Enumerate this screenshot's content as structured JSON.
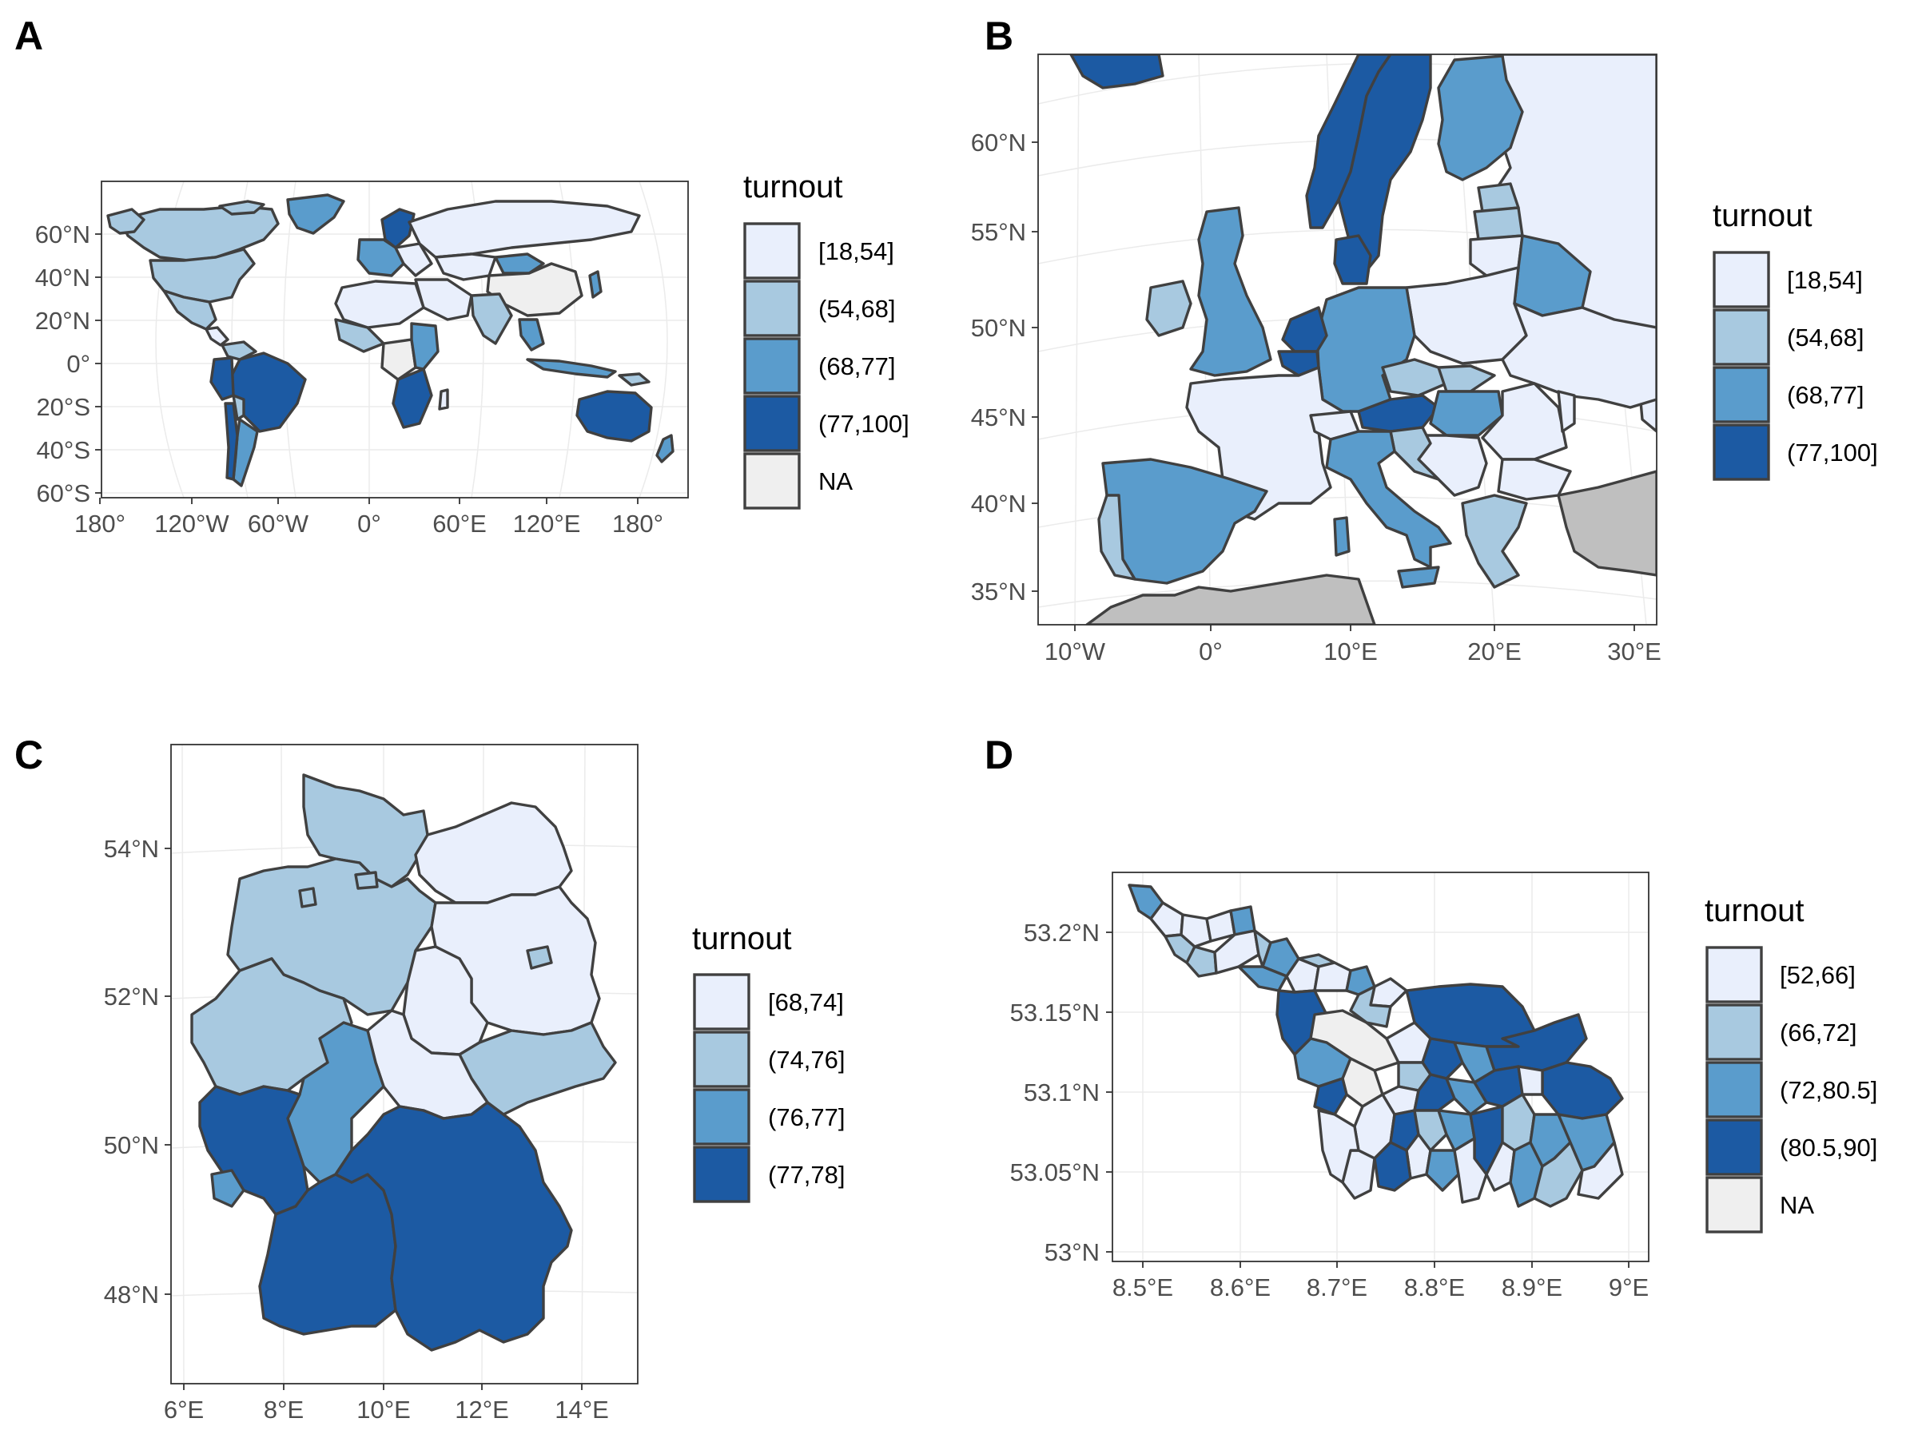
{
  "colors": {
    "c1": "#e9effc",
    "c2": "#a8c9e0",
    "c3": "#5a9ccc",
    "c4": "#1c5aa3",
    "na": "#efefef",
    "outside": "#bfbfbf",
    "border": "#404040"
  },
  "panels": [
    {
      "id": "A",
      "letter": "A",
      "map": "world",
      "legend_title": "turnout",
      "legend": [
        {
          "label": "[18,54]",
          "cls": "c1"
        },
        {
          "label": "(54,68]",
          "cls": "c2"
        },
        {
          "label": "(68,77]",
          "cls": "c3"
        },
        {
          "label": "(77,100]",
          "cls": "c4"
        },
        {
          "label": "NA",
          "cls": "na"
        }
      ],
      "y_ticks": [
        "60°N",
        "40°N",
        "20°N",
        "0°",
        "20°S",
        "40°S",
        "60°S"
      ],
      "x_ticks": [
        "180°",
        "120°W",
        "60°W",
        "0°",
        "60°E",
        "120°E",
        "180°"
      ]
    },
    {
      "id": "B",
      "letter": "B",
      "map": "europe",
      "legend_title": "turnout",
      "legend": [
        {
          "label": "[18,54]",
          "cls": "c1"
        },
        {
          "label": "(54,68]",
          "cls": "c2"
        },
        {
          "label": "(68,77]",
          "cls": "c3"
        },
        {
          "label": "(77,100]",
          "cls": "c4"
        }
      ],
      "y_ticks": [
        "60°N",
        "55°N",
        "50°N",
        "45°N",
        "40°N",
        "35°N"
      ],
      "x_ticks": [
        "10°W",
        "0°",
        "10°E",
        "20°E",
        "30°E"
      ]
    },
    {
      "id": "C",
      "letter": "C",
      "map": "germany",
      "legend_title": "turnout",
      "legend": [
        {
          "label": "[68,74]",
          "cls": "c1"
        },
        {
          "label": "(74,76]",
          "cls": "c2"
        },
        {
          "label": "(76,77]",
          "cls": "c3"
        },
        {
          "label": "(77,78]",
          "cls": "c4"
        }
      ],
      "y_ticks": [
        "54°N",
        "52°N",
        "50°N",
        "48°N"
      ],
      "x_ticks": [
        "6°E",
        "8°E",
        "10°E",
        "12°E",
        "14°E"
      ]
    },
    {
      "id": "D",
      "letter": "D",
      "map": "bremen",
      "legend_title": "turnout",
      "legend": [
        {
          "label": "[52,66]",
          "cls": "c1"
        },
        {
          "label": "(66,72]",
          "cls": "c2"
        },
        {
          "label": "(72,80.5]",
          "cls": "c3"
        },
        {
          "label": "(80.5,90]",
          "cls": "c4"
        },
        {
          "label": "NA",
          "cls": "na"
        }
      ],
      "y_ticks": [
        "53.2°N",
        "53.15°N",
        "53.1°N",
        "53.05°N",
        "53°N"
      ],
      "x_ticks": [
        "8.5°E",
        "8.6°E",
        "8.7°E",
        "8.8°E",
        "8.9°E",
        "9°E"
      ]
    }
  ]
}
